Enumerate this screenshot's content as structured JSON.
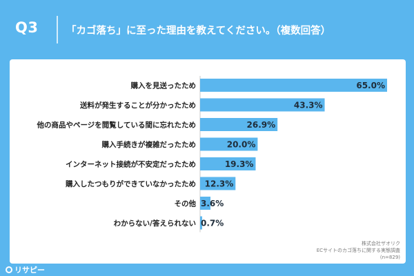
{
  "header": {
    "q_label": "Q3",
    "question": "「カゴ落ち」に至った理由を教えてください。（複数回答）"
  },
  "source": {
    "company": "株式会社ザオリク",
    "survey": "ECサイトのカゴ落ちに関する実態調査",
    "sample": "(n=829)"
  },
  "logo": {
    "text": "リサピー"
  },
  "colors": {
    "background": "#5ab6ee",
    "bar": "#5ab6ee",
    "card": "#ffffff"
  },
  "chart_data": {
    "type": "bar",
    "orientation": "horizontal",
    "categories": [
      "購入を見送ったため",
      "送料が発生することが分かったため",
      "他の商品やページを閲覧している間に忘れたため",
      "購入手続きが複雑だったため",
      "インターネット接続が不安定だったため",
      "購入したつもりができていなかったため",
      "その他",
      "わからない/答えられない"
    ],
    "values": [
      65.0,
      43.3,
      26.9,
      20.0,
      19.3,
      12.3,
      3.6,
      0.7
    ],
    "value_labels": [
      "65.0%",
      "43.3%",
      "26.9%",
      "20.0%",
      "19.3%",
      "12.3%",
      "3.6%",
      "0.7%"
    ],
    "xlim": [
      0,
      65
    ],
    "grid": false,
    "legend": "none"
  }
}
